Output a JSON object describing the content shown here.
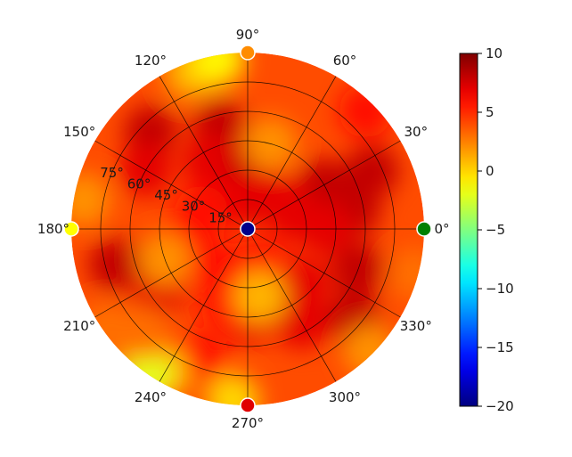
{
  "chart_data": {
    "type": "heatmap",
    "projection": "polar",
    "angular_ticks": [
      "0°",
      "30°",
      "60°",
      "90°",
      "120°",
      "150°",
      "180°",
      "210°",
      "240°",
      "270°",
      "300°",
      "330°"
    ],
    "angular_tick_values": [
      0,
      30,
      60,
      90,
      120,
      150,
      180,
      210,
      240,
      270,
      300,
      330
    ],
    "radial_ticks": [
      "15°",
      "30°",
      "45°",
      "60°",
      "75°"
    ],
    "radial_tick_values": [
      15,
      30,
      45,
      60,
      75
    ],
    "radial_range": [
      0,
      90
    ],
    "grid": true,
    "colorbar": {
      "colormap": "jet",
      "vmin": -20,
      "vmax": 10,
      "ticks": [
        10,
        5,
        0,
        -5,
        -10,
        -15,
        -20
      ],
      "tick_labels": [
        "10",
        "5",
        "0",
        "−5",
        "−10",
        "−15",
        "−20"
      ],
      "placement": "right"
    },
    "markers": [
      {
        "theta": 0,
        "r": 0,
        "color": "#00008b"
      },
      {
        "theta": 0,
        "r": 90,
        "color": "#008000"
      },
      {
        "theta": 90,
        "r": 90,
        "color": "#ff8c00"
      },
      {
        "theta": 180,
        "r": 90,
        "color": "#ffff00"
      },
      {
        "theta": 270,
        "r": 90,
        "color": "#e00000"
      }
    ],
    "value_blobs": [
      {
        "theta": 105,
        "r": 55,
        "value": 8
      },
      {
        "theta": 135,
        "r": 70,
        "value": 8
      },
      {
        "theta": 150,
        "r": 60,
        "value": 7
      },
      {
        "theta": 120,
        "r": 40,
        "value": 7
      },
      {
        "theta": 85,
        "r": 30,
        "value": 8
      },
      {
        "theta": 95,
        "r": 15,
        "value": 7
      },
      {
        "theta": 30,
        "r": 45,
        "value": 8
      },
      {
        "theta": 25,
        "r": 70,
        "value": 8
      },
      {
        "theta": 15,
        "r": 25,
        "value": 7
      },
      {
        "theta": 10,
        "r": 55,
        "value": 8
      },
      {
        "theta": 0,
        "r": 40,
        "value": 7
      },
      {
        "theta": 340,
        "r": 60,
        "value": 8
      },
      {
        "theta": 320,
        "r": 70,
        "value": 8
      },
      {
        "theta": 315,
        "r": 40,
        "value": 7
      },
      {
        "theta": 300,
        "r": 55,
        "value": 7
      },
      {
        "theta": 290,
        "r": 20,
        "value": 6
      },
      {
        "theta": 270,
        "r": 45,
        "value": 7
      },
      {
        "theta": 255,
        "r": 40,
        "value": 6
      },
      {
        "theta": 250,
        "r": 70,
        "value": 6
      },
      {
        "theta": 215,
        "r": 55,
        "value": 7
      },
      {
        "theta": 195,
        "r": 70,
        "value": 8
      },
      {
        "theta": 190,
        "r": 30,
        "value": 6
      },
      {
        "theta": 160,
        "r": 25,
        "value": 6
      },
      {
        "theta": 60,
        "r": 20,
        "value": 7
      },
      {
        "theta": 45,
        "r": 85,
        "value": 6
      },
      {
        "theta": 235,
        "r": 25,
        "value": 6
      },
      {
        "theta": 280,
        "r": 35,
        "value": 1
      },
      {
        "theta": 200,
        "r": 45,
        "value": 2
      },
      {
        "theta": 170,
        "r": 85,
        "value": 2
      },
      {
        "theta": 75,
        "r": 45,
        "value": 2
      },
      {
        "theta": 110,
        "r": 85,
        "value": 1
      },
      {
        "theta": 100,
        "r": 88,
        "value": -1
      },
      {
        "theta": 240,
        "r": 85,
        "value": 1
      },
      {
        "theta": 235,
        "r": 90,
        "value": -2
      },
      {
        "theta": 265,
        "r": 88,
        "value": 0
      },
      {
        "theta": 345,
        "r": 88,
        "value": 3
      },
      {
        "theta": 315,
        "r": 88,
        "value": 2
      },
      {
        "theta": 225,
        "r": 75,
        "value": 3
      },
      {
        "theta": 215,
        "r": 88,
        "value": 3
      }
    ],
    "background_value": 4
  }
}
